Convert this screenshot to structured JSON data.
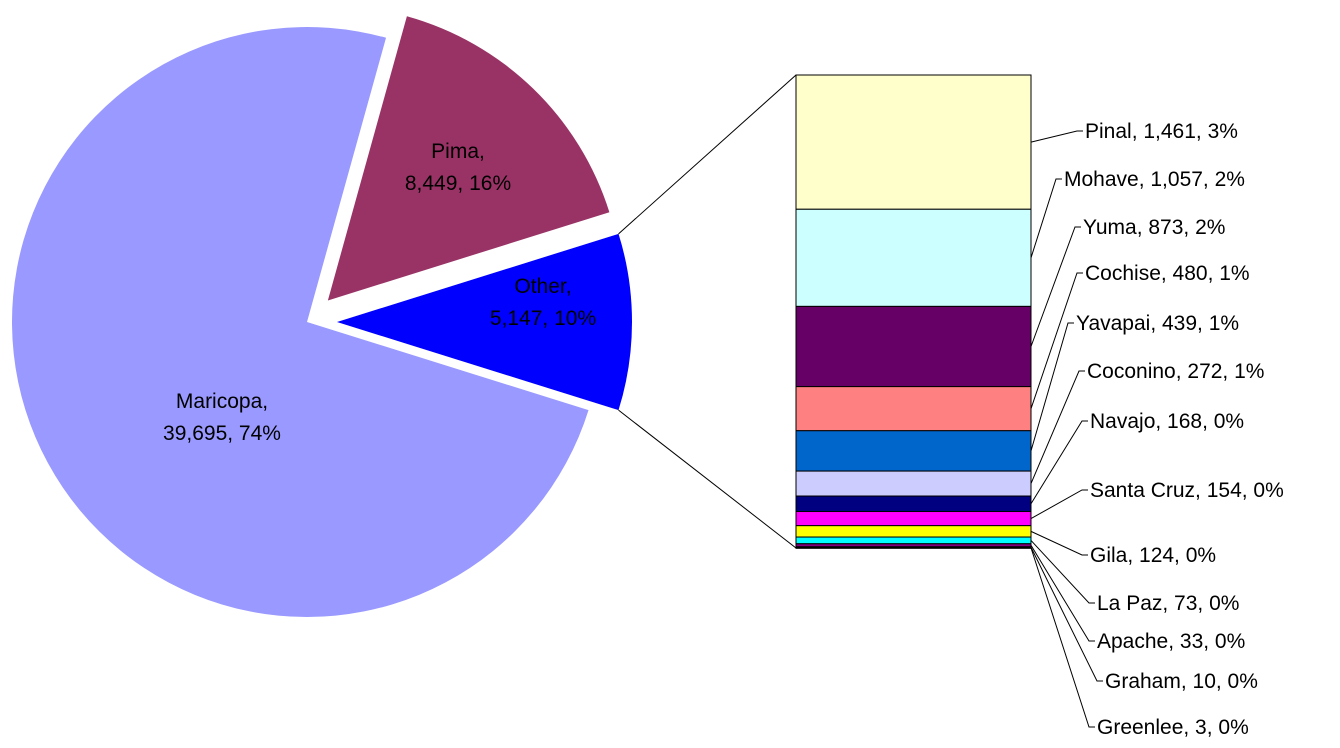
{
  "chart_data": {
    "type": "bar-of-pie",
    "title": "",
    "pie": {
      "slices": [
        {
          "name": "Maricopa",
          "value": 39695,
          "percent": "74%",
          "color": "#9999FF",
          "label_line1": "Maricopa,",
          "label_line2": "39,695, 74%"
        },
        {
          "name": "Pima",
          "value": 8449,
          "percent": "16%",
          "color": "#993366",
          "label_line1": "Pima,",
          "label_line2": "8,449, 16%"
        },
        {
          "name": "Other",
          "value": 5147,
          "percent": "10%",
          "color": "#0000FF",
          "label_line1": "Other,",
          "label_line2": "5,147, 10%"
        }
      ]
    },
    "bar": {
      "segments": [
        {
          "name": "Pinal",
          "value": 1461,
          "percent": "3%",
          "color": "#FFFFCC",
          "label": "Pinal, 1,461, 3%"
        },
        {
          "name": "Mohave",
          "value": 1057,
          "percent": "2%",
          "color": "#CCFFFF",
          "label": "Mohave, 1,057, 2%"
        },
        {
          "name": "Yuma",
          "value": 873,
          "percent": "2%",
          "color": "#660066",
          "label": "Yuma, 873, 2%"
        },
        {
          "name": "Cochise",
          "value": 480,
          "percent": "1%",
          "color": "#FF8080",
          "label": "Cochise, 480, 1%"
        },
        {
          "name": "Yavapai",
          "value": 439,
          "percent": "1%",
          "color": "#0066CC",
          "label": "Yavapai, 439, 1%"
        },
        {
          "name": "Coconino",
          "value": 272,
          "percent": "1%",
          "color": "#CCCCFF",
          "label": "Coconino, 272, 1%"
        },
        {
          "name": "Navajo",
          "value": 168,
          "percent": "0%",
          "color": "#000080",
          "label": "Navajo, 168, 0%"
        },
        {
          "name": "Santa Cruz",
          "value": 154,
          "percent": "0%",
          "color": "#FF00FF",
          "label": "Santa Cruz, 154, 0%"
        },
        {
          "name": "Gila",
          "value": 124,
          "percent": "0%",
          "color": "#FFFF00",
          "label": "Gila, 124, 0%"
        },
        {
          "name": "La Paz",
          "value": 73,
          "percent": "0%",
          "color": "#00FFFF",
          "label": "La Paz, 73, 0%"
        },
        {
          "name": "Apache",
          "value": 33,
          "percent": "0%",
          "color": "#800080",
          "label": "Apache, 33, 0%"
        },
        {
          "name": "Graham",
          "value": 10,
          "percent": "0%",
          "color": "#800000",
          "label": "Graham, 10, 0%"
        },
        {
          "name": "Greenlee",
          "value": 3,
          "percent": "0%",
          "color": "#008080",
          "label": "Greenlee, 3, 0%"
        }
      ]
    }
  }
}
